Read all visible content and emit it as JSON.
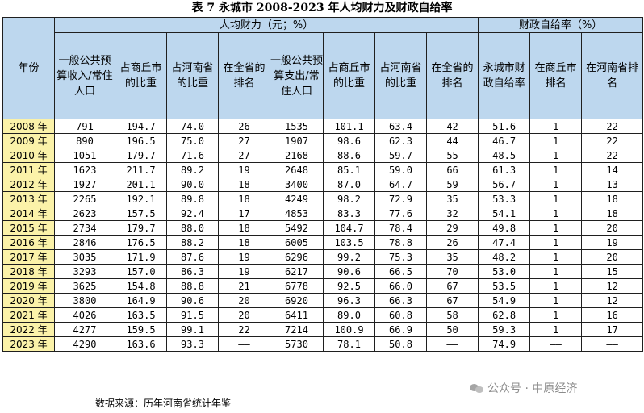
{
  "title": "表 7 永城市 2008-2023 年人均财力及财政自给率",
  "header": {
    "year": "年份",
    "group_per_capita": "人均财力（元；%）",
    "group_self_sufficiency": "财政自给率（%）",
    "columns": [
      "一般公共预算收入/常住人口",
      "占商丘市的比重",
      "占河南省的比重",
      "在全省的排名",
      "一般公共预算支出/常住人口",
      "占商丘市的比重",
      "占河南省的比重",
      "在全省的排名",
      "永城市财政自给率",
      "在商丘市排名",
      "在河南省排名"
    ]
  },
  "rows": [
    [
      "2008 年",
      "791",
      "194.7",
      "74.0",
      "26",
      "1535",
      "101.1",
      "63.4",
      "42",
      "51.6",
      "1",
      "22"
    ],
    [
      "2009 年",
      "890",
      "196.5",
      "75.0",
      "27",
      "1907",
      "98.6",
      "62.3",
      "44",
      "46.7",
      "1",
      "22"
    ],
    [
      "2010 年",
      "1051",
      "179.7",
      "71.6",
      "27",
      "2168",
      "88.6",
      "59.7",
      "55",
      "48.5",
      "1",
      "22"
    ],
    [
      "2011 年",
      "1623",
      "211.7",
      "89.2",
      "19",
      "2648",
      "85.1",
      "59.0",
      "66",
      "61.3",
      "1",
      "14"
    ],
    [
      "2012 年",
      "1927",
      "201.1",
      "90.0",
      "18",
      "3400",
      "87.0",
      "64.7",
      "59",
      "56.7",
      "1",
      "13"
    ],
    [
      "2013 年",
      "2265",
      "192.1",
      "89.8",
      "18",
      "4249",
      "98.2",
      "72.9",
      "35",
      "53.3",
      "1",
      "18"
    ],
    [
      "2014 年",
      "2623",
      "157.5",
      "92.4",
      "17",
      "4853",
      "83.3",
      "77.6",
      "32",
      "54.1",
      "1",
      "18"
    ],
    [
      "2015 年",
      "2734",
      "179.7",
      "88.0",
      "18",
      "5492",
      "104.7",
      "78.4",
      "29",
      "49.8",
      "1",
      "20"
    ],
    [
      "2016 年",
      "2846",
      "176.5",
      "88.2",
      "18",
      "6005",
      "103.5",
      "78.8",
      "26",
      "47.4",
      "1",
      "19"
    ],
    [
      "2017 年",
      "3035",
      "171.9",
      "87.6",
      "19",
      "6296",
      "99.2",
      "75.3",
      "35",
      "48.2",
      "1",
      "20"
    ],
    [
      "2018 年",
      "3293",
      "157.0",
      "86.3",
      "19",
      "6217",
      "90.6",
      "66.5",
      "70",
      "53.0",
      "1",
      "15"
    ],
    [
      "2019 年",
      "3625",
      "154.8",
      "88.8",
      "21",
      "6778",
      "92.5",
      "66.0",
      "67",
      "53.5",
      "1",
      "12"
    ],
    [
      "2020 年",
      "3800",
      "164.9",
      "90.6",
      "20",
      "6920",
      "96.3",
      "66.3",
      "67",
      "54.9",
      "1",
      "12"
    ],
    [
      "2021 年",
      "4026",
      "163.5",
      "91.5",
      "20",
      "6411",
      "89.0",
      "60.8",
      "58",
      "62.8",
      "1",
      "16"
    ],
    [
      "2022 年",
      "4277",
      "159.5",
      "99.1",
      "22",
      "7214",
      "100.9",
      "66.9",
      "50",
      "59.3",
      "1",
      "17"
    ],
    [
      "2023 年",
      "4290",
      "163.6",
      "93.3",
      "——",
      "5730",
      "78.1",
      "50.8",
      "——",
      "74.9",
      "——",
      "——"
    ]
  ],
  "source": "数据来源：历年河南省统计年鉴",
  "watermark": "公众号 · 中原经济"
}
